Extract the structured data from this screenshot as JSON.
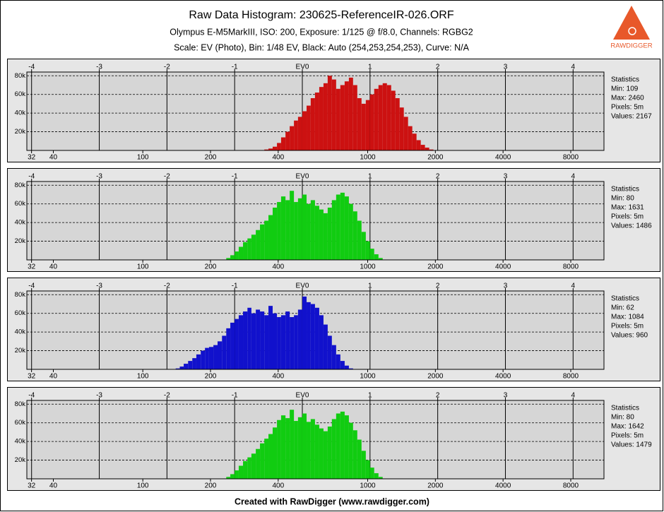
{
  "header": {
    "title": "Raw Data Histogram: 230625-ReferenceIR-026.ORF",
    "subtitle": "Olympus E-M5MarkIII, ISO: 200, Exposure: 1/125 @ f/8.0, Channels: RGBG2",
    "settings": "Scale: EV (Photo), Bin: 1/48 EV, Black: Auto (254,253,254,253), Curve: N/A",
    "logo": "RAWDIGGER"
  },
  "footer": "Created with RawDigger (www.rawdigger.com)",
  "chart_data": [
    {
      "type": "histogram",
      "color": "#cc1111",
      "xscale": "log",
      "grid": true,
      "bins": [
        347,
        362,
        378,
        395,
        412,
        431,
        450,
        470,
        490,
        512,
        535,
        558,
        583,
        609,
        636,
        664,
        693,
        724,
        756,
        790,
        825,
        861,
        899,
        939,
        981,
        1024,
        1069,
        1117,
        1166,
        1218,
        1272,
        1328,
        1387,
        1448,
        1512,
        1579,
        1649,
        1722,
        1798,
        1878,
        1961
      ],
      "values": [
        1000,
        2000,
        4000,
        8000,
        14000,
        20000,
        26000,
        32000,
        36000,
        42000,
        48000,
        56000,
        62000,
        68000,
        72000,
        80000,
        76000,
        66000,
        70000,
        74000,
        78000,
        70000,
        56000,
        50000,
        54000,
        60000,
        66000,
        70000,
        72000,
        70000,
        64000,
        56000,
        46000,
        36000,
        26000,
        18000,
        11000,
        6000,
        3000,
        1000
      ],
      "xlim": [
        30.5,
        11240
      ],
      "xticks": [
        32,
        40,
        100,
        200,
        400,
        1000,
        2000,
        4000,
        8000
      ],
      "x2lim": [
        -4.07,
        4.456
      ],
      "x2ticks": [
        -4,
        -3,
        -2,
        -1,
        {
          "value": 0,
          "label": "EV0"
        },
        1,
        2,
        3,
        4
      ],
      "ylim": [
        0,
        84000
      ],
      "yticks": [
        {
          "value": 20000,
          "label": "20k"
        },
        {
          "value": 40000,
          "label": "40k"
        },
        {
          "value": 60000,
          "label": "60k"
        },
        {
          "value": 80000,
          "label": "80k"
        }
      ],
      "stats": [
        "Statistics",
        "Min: 109",
        "Max: 2460",
        "Pixels: 5m",
        "Values: 2167"
      ]
    },
    {
      "type": "histogram",
      "color": "#11cc11",
      "xscale": "log",
      "grid": true,
      "bins": [
        235,
        245,
        256,
        267,
        279,
        292,
        304,
        318,
        332,
        347,
        362,
        378,
        395,
        412,
        431,
        450,
        470,
        490,
        512,
        535,
        558,
        583,
        609,
        636,
        664,
        693,
        724,
        756,
        790,
        825,
        861,
        899,
        939,
        981,
        1024,
        1069,
        1117,
        1166
      ],
      "values": [
        2000,
        5000,
        9000,
        14000,
        19000,
        23000,
        27000,
        32000,
        38000,
        42000,
        48000,
        56000,
        62000,
        68000,
        64000,
        74000,
        62000,
        66000,
        70000,
        60000,
        64000,
        58000,
        54000,
        50000,
        56000,
        64000,
        70000,
        72000,
        68000,
        60000,
        52000,
        42000,
        30000,
        20000,
        12000,
        6000,
        2000
      ],
      "xlim": [
        30.5,
        11240
      ],
      "xticks": [
        32,
        40,
        100,
        200,
        400,
        1000,
        2000,
        4000,
        8000
      ],
      "x2lim": [
        -4.07,
        4.456
      ],
      "x2ticks": [
        -4,
        -3,
        -2,
        -1,
        {
          "value": 0,
          "label": "EV0"
        },
        1,
        2,
        3,
        4
      ],
      "ylim": [
        0,
        84000
      ],
      "yticks": [
        {
          "value": 20000,
          "label": "20k"
        },
        {
          "value": 40000,
          "label": "40k"
        },
        {
          "value": 60000,
          "label": "60k"
        },
        {
          "value": 80000,
          "label": "80k"
        }
      ],
      "stats": [
        "Statistics",
        "Min: 80",
        "Max: 1631",
        "Pixels: 5m",
        "Values: 1486"
      ]
    },
    {
      "type": "histogram",
      "color": "#1111cc",
      "xscale": "log",
      "grid": true,
      "bins": [
        140,
        146,
        152,
        159,
        166,
        173,
        181,
        189,
        197,
        206,
        215,
        225,
        235,
        245,
        256,
        267,
        279,
        292,
        304,
        318,
        332,
        347,
        362,
        378,
        395,
        412,
        431,
        450,
        470,
        490,
        512,
        535,
        558,
        583,
        609,
        636,
        664,
        693,
        724,
        756,
        790,
        825,
        861
      ],
      "values": [
        1000,
        3000,
        6000,
        9000,
        12000,
        16000,
        20000,
        23000,
        24000,
        26000,
        30000,
        36000,
        44000,
        50000,
        54000,
        58000,
        62000,
        66000,
        60000,
        64000,
        62000,
        58000,
        68000,
        60000,
        56000,
        58000,
        62000,
        56000,
        58000,
        64000,
        78000,
        72000,
        70000,
        66000,
        58000,
        48000,
        36000,
        26000,
        16000,
        9000,
        4000,
        1000
      ],
      "xlim": [
        30.5,
        11240
      ],
      "xticks": [
        32,
        40,
        100,
        200,
        400,
        1000,
        2000,
        4000,
        8000
      ],
      "x2lim": [
        -4.07,
        4.456
      ],
      "x2ticks": [
        -4,
        -3,
        -2,
        -1,
        {
          "value": 0,
          "label": "EV0"
        },
        1,
        2,
        3,
        4
      ],
      "ylim": [
        0,
        84000
      ],
      "yticks": [
        {
          "value": 20000,
          "label": "20k"
        },
        {
          "value": 40000,
          "label": "40k"
        },
        {
          "value": 60000,
          "label": "60k"
        },
        {
          "value": 80000,
          "label": "80k"
        }
      ],
      "stats": [
        "Statistics",
        "Min: 62",
        "Max: 1084",
        "Pixels: 5m",
        "Values: 960"
      ]
    },
    {
      "type": "histogram",
      "color": "#11cc11",
      "xscale": "log",
      "grid": true,
      "bins": [
        235,
        245,
        256,
        267,
        279,
        292,
        304,
        318,
        332,
        347,
        362,
        378,
        395,
        412,
        431,
        450,
        470,
        490,
        512,
        535,
        558,
        583,
        609,
        636,
        664,
        693,
        724,
        756,
        790,
        825,
        861,
        899,
        939,
        981,
        1024,
        1069,
        1117,
        1166
      ],
      "values": [
        2000,
        5000,
        9000,
        14000,
        19000,
        23000,
        27000,
        32000,
        38000,
        43000,
        48000,
        55000,
        63000,
        68000,
        65000,
        74000,
        62000,
        66000,
        70000,
        61000,
        64000,
        58000,
        54000,
        51000,
        56000,
        64000,
        70000,
        72000,
        68000,
        60000,
        52000,
        42000,
        30000,
        20000,
        12000,
        6000,
        2000
      ],
      "xlim": [
        30.5,
        11240
      ],
      "xticks": [
        32,
        40,
        100,
        200,
        400,
        1000,
        2000,
        4000,
        8000
      ],
      "x2lim": [
        -4.07,
        4.456
      ],
      "x2ticks": [
        -4,
        -3,
        -2,
        -1,
        {
          "value": 0,
          "label": "EV0"
        },
        1,
        2,
        3,
        4
      ],
      "ylim": [
        0,
        84000
      ],
      "yticks": [
        {
          "value": 20000,
          "label": "20k"
        },
        {
          "value": 40000,
          "label": "40k"
        },
        {
          "value": 60000,
          "label": "60k"
        },
        {
          "value": 80000,
          "label": "80k"
        }
      ],
      "stats": [
        "Statistics",
        "Min: 80",
        "Max: 1642",
        "Pixels: 5m",
        "Values: 1479"
      ]
    }
  ]
}
